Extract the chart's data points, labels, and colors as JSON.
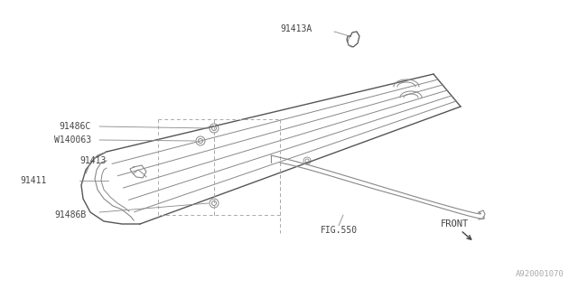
{
  "bg_color": "#ffffff",
  "line_color": "#888888",
  "line_color_dark": "#555555",
  "text_color": "#444444",
  "fig_width": 6.4,
  "fig_height": 3.2,
  "dpi": 100,
  "part_number_bottom": "A920001070",
  "label_91413A": "91413A",
  "label_91486C": "91486C",
  "label_W140063": "W140063",
  "label_91413": "91413",
  "label_91411": "91411",
  "label_91486B": "91486B",
  "label_FIG550": "FIG.550",
  "label_FRONT": "FRONT",
  "panel_color": "#999999"
}
